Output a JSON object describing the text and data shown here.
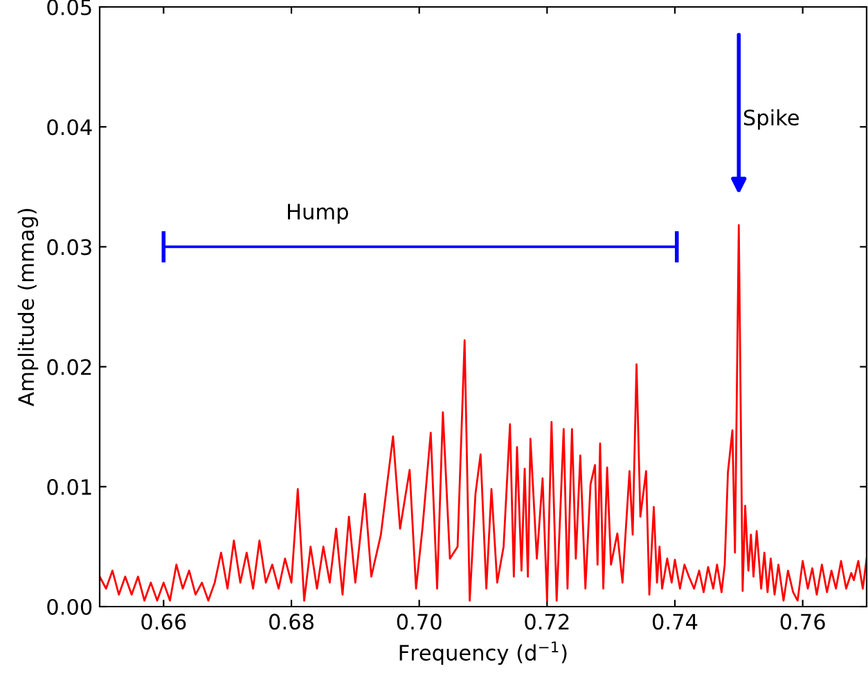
{
  "chart_data": {
    "type": "line",
    "xlabel": "Frequency (d$^{−1}$)",
    "ylabel": "Amplitude (mmag)",
    "xlim": [
      0.65,
      0.77
    ],
    "xticks": [
      {
        "value": 0.66,
        "label": "0.66"
      },
      {
        "value": 0.68,
        "label": "0.68"
      },
      {
        "value": 0.7,
        "label": "0.70"
      },
      {
        "value": 0.72,
        "label": "0.72"
      },
      {
        "value": 0.74,
        "label": "0.74"
      },
      {
        "value": 0.76,
        "label": "0.76"
      }
    ],
    "ylim": [
      0,
      0.05
    ],
    "yticks": [
      {
        "value": 0,
        "label": "0.00"
      },
      {
        "value": 0.01,
        "label": "0.01"
      },
      {
        "value": 0.02,
        "label": "0.02"
      },
      {
        "value": 0.03,
        "label": "0.03"
      },
      {
        "value": 0.04,
        "label": "0.04"
      },
      {
        "value": 0.05,
        "label": "0.05"
      }
    ],
    "grid": false,
    "legend": false,
    "series": [
      {
        "color": "#ff0000",
        "x": [
          0.65,
          0.651,
          0.652,
          0.653,
          0.654,
          0.655,
          0.656,
          0.657,
          0.658,
          0.659,
          0.66,
          0.661,
          0.662,
          0.663,
          0.664,
          0.665,
          0.666,
          0.667,
          0.668,
          0.669,
          0.67,
          0.671,
          0.672,
          0.673,
          0.674,
          0.675,
          0.676,
          0.677,
          0.678,
          0.679,
          0.68,
          0.681,
          0.682,
          0.683,
          0.684,
          0.685,
          0.686,
          0.687,
          0.688,
          0.689,
          0.69,
          0.6915,
          0.6925,
          0.694,
          0.6959,
          0.697,
          0.6985,
          0.6995,
          0.7005,
          0.7018,
          0.7028,
          0.7037,
          0.7048,
          0.706,
          0.7071,
          0.7079,
          0.7088,
          0.7096,
          0.7105,
          0.7113,
          0.7122,
          0.7132,
          0.7142,
          0.7148,
          0.7153,
          0.716,
          0.7165,
          0.717,
          0.7174,
          0.7184,
          0.7193,
          0.72,
          0.7207,
          0.7215,
          0.7226,
          0.7232,
          0.7239,
          0.7245,
          0.7252,
          0.726,
          0.7268,
          0.7275,
          0.7279,
          0.7283,
          0.7288,
          0.7294,
          0.73,
          0.731,
          0.7318,
          0.7329,
          0.7334,
          0.734,
          0.7346,
          0.7355,
          0.736,
          0.7367,
          0.7372,
          0.7376,
          0.738,
          0.7388,
          0.7395,
          0.74,
          0.7408,
          0.7415,
          0.7422,
          0.743,
          0.7438,
          0.7445,
          0.7452,
          0.746,
          0.7466,
          0.7473,
          0.7478,
          0.7483,
          0.749,
          0.7494,
          0.75,
          0.7506,
          0.751,
          0.7515,
          0.7519,
          0.7523,
          0.7528,
          0.7535,
          0.754,
          0.7545,
          0.755,
          0.7556,
          0.7562,
          0.757,
          0.7577,
          0.7585,
          0.7592,
          0.76,
          0.7608,
          0.7615,
          0.7622,
          0.763,
          0.7638,
          0.7645,
          0.7652,
          0.766,
          0.7668,
          0.7676,
          0.768,
          0.7687,
          0.7694,
          0.77
        ],
        "values": [
          0.0025,
          0.0015,
          0.003,
          0.001,
          0.0025,
          0.001,
          0.0025,
          0.0005,
          0.002,
          0.0005,
          0.002,
          0.0005,
          0.0035,
          0.0015,
          0.003,
          0.001,
          0.002,
          0.0005,
          0.002,
          0.0045,
          0.0015,
          0.0055,
          0.002,
          0.0045,
          0.0015,
          0.0055,
          0.002,
          0.0035,
          0.0015,
          0.004,
          0.002,
          0.0098,
          0.0005,
          0.005,
          0.0015,
          0.005,
          0.002,
          0.0065,
          0.001,
          0.0075,
          0.002,
          0.0094,
          0.0025,
          0.006,
          0.0142,
          0.0065,
          0.0114,
          0.0015,
          0.0065,
          0.0145,
          0.0015,
          0.0162,
          0.004,
          0.005,
          0.0222,
          0.0005,
          0.0094,
          0.0127,
          0.0015,
          0.0098,
          0.002,
          0.005,
          0.0152,
          0.0025,
          0.0133,
          0.003,
          0.0115,
          0.0025,
          0.014,
          0.004,
          0.0107,
          0.0005,
          0.0154,
          0.0005,
          0.0148,
          0.0015,
          0.0148,
          0.004,
          0.0126,
          0.0015,
          0.0102,
          0.0118,
          0.0035,
          0.0136,
          0.0015,
          0.0116,
          0.0035,
          0.0061,
          0.002,
          0.0113,
          0.006,
          0.0202,
          0.0075,
          0.0113,
          0.001,
          0.0083,
          0.002,
          0.005,
          0.0015,
          0.004,
          0.002,
          0.0039,
          0.0015,
          0.0035,
          0.0025,
          0.0015,
          0.003,
          0.0012,
          0.0033,
          0.0015,
          0.0035,
          0.0012,
          0.0035,
          0.0112,
          0.0147,
          0.0045,
          0.0318,
          0.0013,
          0.0084,
          0.003,
          0.006,
          0.0025,
          0.0063,
          0.0015,
          0.0045,
          0.0012,
          0.004,
          0.001,
          0.0035,
          0.0005,
          0.003,
          0.0012,
          0.0005,
          0.0038,
          0.0015,
          0.0032,
          0.001,
          0.0035,
          0.0012,
          0.003,
          0.0015,
          0.0038,
          0.0015,
          0.0028,
          0.0022,
          0.0038,
          0.0015,
          0.004
        ]
      },
      {
        "color": "#0000ff",
        "x": [
          0.66,
          0.7403
        ],
        "values": [
          0.03,
          0.03
        ],
        "errors": [
          0.0013,
          0.0013
        ]
      }
    ],
    "annotations": [
      "Hump",
      "Spike"
    ]
  }
}
